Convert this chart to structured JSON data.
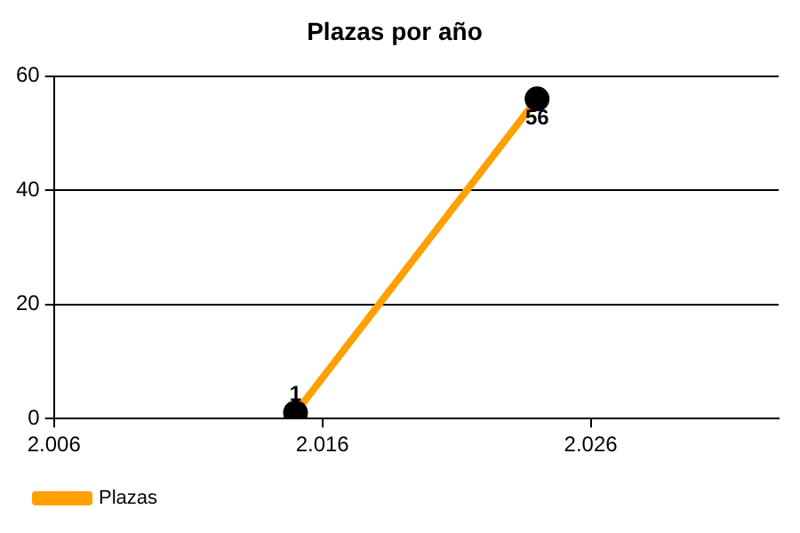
{
  "chart_data": {
    "type": "line",
    "title": "Plazas por año",
    "x": [
      2015,
      2024
    ],
    "series": [
      {
        "name": "Plazas",
        "color": "#ffa000",
        "values": [
          1,
          56
        ]
      }
    ],
    "xlim": [
      2006,
      2033
    ],
    "xticks": [
      {
        "value": 2006,
        "label": "2.006"
      },
      {
        "value": 2016,
        "label": "2.016"
      },
      {
        "value": 2026,
        "label": "2.026"
      }
    ],
    "ylim": [
      0,
      60
    ],
    "yticks": [
      0,
      20,
      40,
      60
    ],
    "grid": "y",
    "legend": "bottom left",
    "marker": "circle",
    "line_style": "solid",
    "data_labels": true
  }
}
